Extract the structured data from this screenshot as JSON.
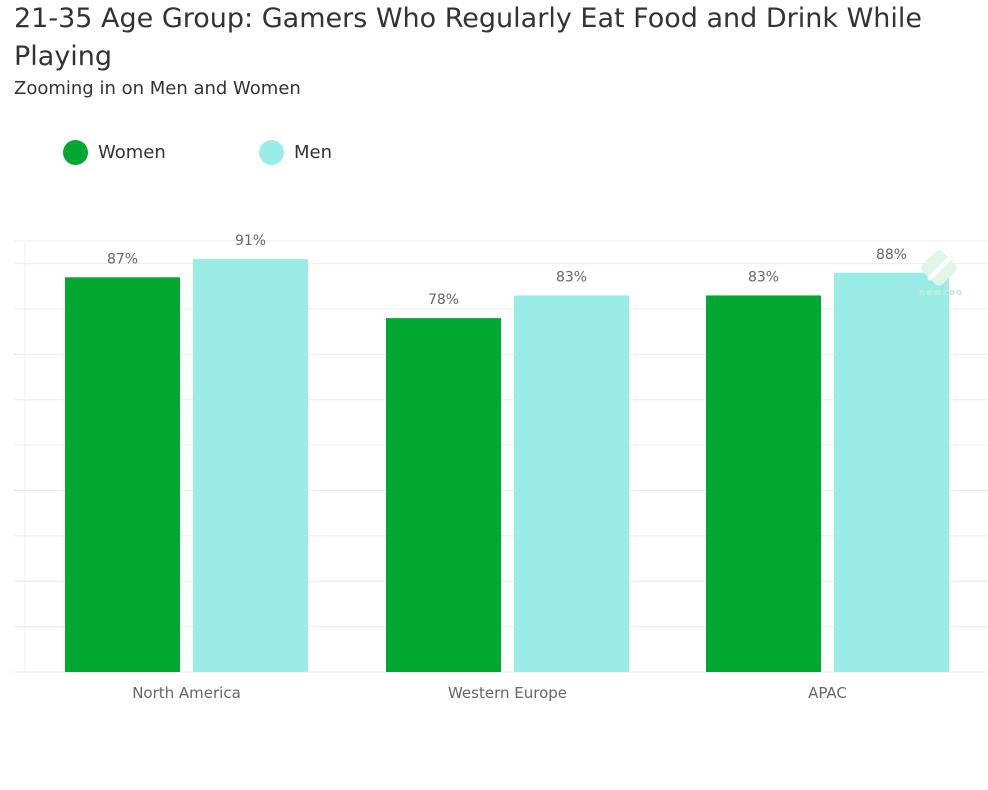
{
  "title": "21-35 Age Group: Gamers Who Regularly Eat Food and Drink While Playing",
  "subtitle": "Zooming in on Men and Women",
  "logo": {
    "text": "newzoo",
    "icon": "newzoo-logo-icon"
  },
  "colors": {
    "women": "#00a832",
    "men": "#9aede6",
    "grid": "#ececec",
    "label": "#666666"
  },
  "chart_data": {
    "type": "bar",
    "title": "21-35 Age Group: Gamers Who Regularly Eat Food and Drink While Playing",
    "subtitle": "Zooming in on Men and Women",
    "categories": [
      "North America",
      "Western Europe",
      "APAC"
    ],
    "series": [
      {
        "name": "Women",
        "values": [
          87,
          78,
          83
        ],
        "labels": [
          "87%",
          "78%",
          "83%"
        ],
        "color": "#00a832"
      },
      {
        "name": "Men",
        "values": [
          91,
          83,
          88
        ],
        "labels": [
          "91%",
          "83%",
          "88%"
        ],
        "color": "#9aede6"
      }
    ],
    "ylim": [
      0,
      95
    ],
    "y_tick_step": 10,
    "grid": true,
    "legend_position": "top-left",
    "xlabel": "",
    "ylabel": ""
  }
}
